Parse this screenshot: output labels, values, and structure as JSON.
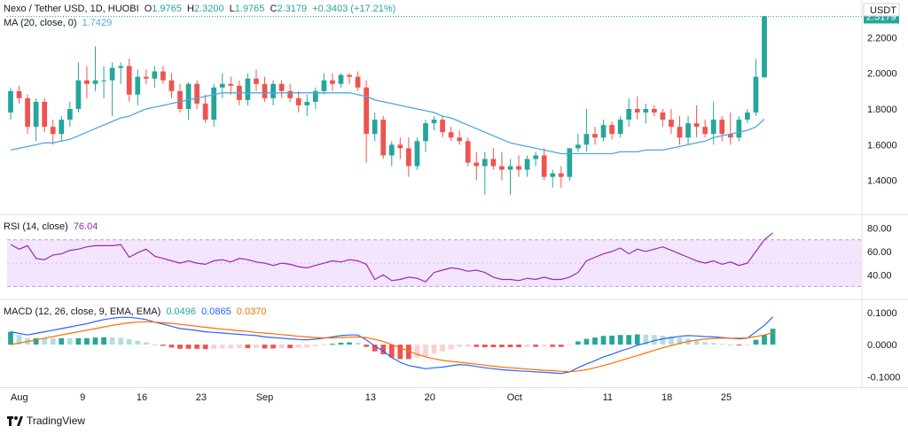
{
  "header": {
    "symbol": "Nexo / Tether USD, 1D, HUOBI",
    "open_label": "O",
    "open": "1.9765",
    "high_label": "H",
    "high": "2.3200",
    "low_label": "L",
    "low": "1.9765",
    "close_label": "C",
    "close": "2.3179",
    "change": "+0.3403 (+17.21%)",
    "currency": "USDT",
    "last_price": "2.3179"
  },
  "ma_legend": {
    "label": "MA (20, close, 0)",
    "value": "1.7429"
  },
  "rsi_legend": {
    "label": "RSI (14, close)",
    "value": "76.04"
  },
  "macd_legend": {
    "label": "MACD (12, 26, close, 9, EMA, EMA)",
    "v1": "0.0496",
    "v2": "0.0865",
    "v3": "0.0370"
  },
  "brand": "TradingView",
  "colors": {
    "up": "#26a69a",
    "down": "#ef5350",
    "ma": "#4ca8dc",
    "rsi": "#9c27b0",
    "macd": "#2962ff",
    "signal": "#ff6d00"
  },
  "chart_data": [
    {
      "type": "candlestick",
      "title": "Nexo / Tether USD, 1D, HUOBI",
      "ylim": [
        1.25,
        2.35
      ],
      "y_ticks": [
        "2.2000",
        "2.0000",
        "1.8000",
        "1.6000",
        "1.4000"
      ],
      "x_ticks": [
        "Aug",
        "9",
        "16",
        "23",
        "Sep",
        "13",
        "20",
        "Oct",
        "11",
        "18",
        "25"
      ],
      "ohlc": [
        [
          1.78,
          1.92,
          1.74,
          1.9
        ],
        [
          1.9,
          1.93,
          1.83,
          1.86
        ],
        [
          1.86,
          1.88,
          1.66,
          1.7
        ],
        [
          1.7,
          1.86,
          1.62,
          1.84
        ],
        [
          1.84,
          1.86,
          1.67,
          1.7
        ],
        [
          1.7,
          1.74,
          1.6,
          1.66
        ],
        [
          1.66,
          1.76,
          1.62,
          1.74
        ],
        [
          1.74,
          1.84,
          1.7,
          1.8
        ],
        [
          1.8,
          2.06,
          1.78,
          1.96
        ],
        [
          1.96,
          2.04,
          1.86,
          1.94
        ],
        [
          1.94,
          2.15,
          1.9,
          1.96
        ],
        [
          1.96,
          2.04,
          1.86,
          1.96
        ],
        [
          1.96,
          2.06,
          1.76,
          2.03
        ],
        [
          2.03,
          2.06,
          1.94,
          2.04
        ],
        [
          2.04,
          2.08,
          1.84,
          1.88
        ],
        [
          1.88,
          2.02,
          1.82,
          1.98
        ],
        [
          1.98,
          2.02,
          1.94,
          1.97
        ],
        [
          1.97,
          2.04,
          1.92,
          2.01
        ],
        [
          2.01,
          2.04,
          1.94,
          1.96
        ],
        [
          1.96,
          2.0,
          1.86,
          1.9
        ],
        [
          1.9,
          1.94,
          1.78,
          1.8
        ],
        [
          1.8,
          1.95,
          1.74,
          1.94
        ],
        [
          1.94,
          1.96,
          1.8,
          1.83
        ],
        [
          1.83,
          1.88,
          1.72,
          1.74
        ],
        [
          1.74,
          1.94,
          1.7,
          1.92
        ],
        [
          1.92,
          2.0,
          1.86,
          1.94
        ],
        [
          1.94,
          1.98,
          1.88,
          1.93
        ],
        [
          1.93,
          1.96,
          1.82,
          1.85
        ],
        [
          1.85,
          2.0,
          1.82,
          1.97
        ],
        [
          1.97,
          2.02,
          1.9,
          1.94
        ],
        [
          1.94,
          1.98,
          1.84,
          1.86
        ],
        [
          1.86,
          1.96,
          1.82,
          1.94
        ],
        [
          1.94,
          1.96,
          1.86,
          1.9
        ],
        [
          1.9,
          1.94,
          1.84,
          1.86
        ],
        [
          1.86,
          1.9,
          1.78,
          1.82
        ],
        [
          1.82,
          1.88,
          1.76,
          1.84
        ],
        [
          1.84,
          1.92,
          1.8,
          1.9
        ],
        [
          1.9,
          2.0,
          1.88,
          1.96
        ],
        [
          1.96,
          2.0,
          1.9,
          1.94
        ],
        [
          1.94,
          2.0,
          1.92,
          1.99
        ],
        [
          1.99,
          2.0,
          1.94,
          1.98
        ],
        [
          1.98,
          2.01,
          1.9,
          1.92
        ],
        [
          1.92,
          1.96,
          1.5,
          1.66
        ],
        [
          1.66,
          1.78,
          1.62,
          1.74
        ],
        [
          1.74,
          1.76,
          1.52,
          1.54
        ],
        [
          1.54,
          1.62,
          1.48,
          1.6
        ],
        [
          1.6,
          1.64,
          1.52,
          1.58
        ],
        [
          1.58,
          1.64,
          1.42,
          1.48
        ],
        [
          1.48,
          1.64,
          1.46,
          1.62
        ],
        [
          1.62,
          1.74,
          1.56,
          1.72
        ],
        [
          1.72,
          1.76,
          1.68,
          1.74
        ],
        [
          1.74,
          1.76,
          1.64,
          1.67
        ],
        [
          1.67,
          1.7,
          1.62,
          1.64
        ],
        [
          1.64,
          1.68,
          1.6,
          1.62
        ],
        [
          1.62,
          1.64,
          1.48,
          1.5
        ],
        [
          1.5,
          1.56,
          1.4,
          1.48
        ],
        [
          1.48,
          1.56,
          1.32,
          1.52
        ],
        [
          1.52,
          1.58,
          1.46,
          1.48
        ],
        [
          1.48,
          1.56,
          1.4,
          1.46
        ],
        [
          1.46,
          1.52,
          1.32,
          1.48
        ],
        [
          1.48,
          1.54,
          1.42,
          1.46
        ],
        [
          1.46,
          1.54,
          1.42,
          1.52
        ],
        [
          1.52,
          1.56,
          1.48,
          1.54
        ],
        [
          1.54,
          1.58,
          1.4,
          1.42
        ],
        [
          1.42,
          1.46,
          1.36,
          1.44
        ],
        [
          1.44,
          1.48,
          1.36,
          1.42
        ],
        [
          1.42,
          1.58,
          1.4,
          1.58
        ],
        [
          1.58,
          1.66,
          1.56,
          1.6
        ],
        [
          1.6,
          1.8,
          1.56,
          1.66
        ],
        [
          1.66,
          1.7,
          1.6,
          1.64
        ],
        [
          1.64,
          1.74,
          1.62,
          1.71
        ],
        [
          1.71,
          1.73,
          1.63,
          1.66
        ],
        [
          1.66,
          1.76,
          1.64,
          1.74
        ],
        [
          1.74,
          1.86,
          1.7,
          1.8
        ],
        [
          1.8,
          1.87,
          1.74,
          1.78
        ],
        [
          1.78,
          1.83,
          1.72,
          1.8
        ],
        [
          1.8,
          1.82,
          1.76,
          1.78
        ],
        [
          1.78,
          1.8,
          1.7,
          1.74
        ],
        [
          1.74,
          1.8,
          1.66,
          1.7
        ],
        [
          1.7,
          1.76,
          1.6,
          1.64
        ],
        [
          1.64,
          1.76,
          1.6,
          1.72
        ],
        [
          1.72,
          1.82,
          1.64,
          1.7
        ],
        [
          1.7,
          1.74,
          1.64,
          1.66
        ],
        [
          1.66,
          1.84,
          1.6,
          1.74
        ],
        [
          1.74,
          1.76,
          1.62,
          1.66
        ],
        [
          1.66,
          1.78,
          1.6,
          1.64
        ],
        [
          1.64,
          1.76,
          1.62,
          1.74
        ],
        [
          1.74,
          1.8,
          1.72,
          1.78
        ],
        [
          1.78,
          2.08,
          1.76,
          1.98
        ],
        [
          1.9765,
          2.32,
          1.9765,
          2.3179
        ]
      ],
      "ma": [
        1.57,
        1.58,
        1.59,
        1.6,
        1.61,
        1.61,
        1.62,
        1.63,
        1.65,
        1.67,
        1.69,
        1.71,
        1.73,
        1.75,
        1.76,
        1.78,
        1.8,
        1.81,
        1.82,
        1.83,
        1.84,
        1.85,
        1.86,
        1.87,
        1.88,
        1.89,
        1.89,
        1.89,
        1.89,
        1.89,
        1.89,
        1.89,
        1.89,
        1.89,
        1.89,
        1.89,
        1.89,
        1.89,
        1.89,
        1.89,
        1.89,
        1.88,
        1.87,
        1.85,
        1.84,
        1.83,
        1.82,
        1.81,
        1.8,
        1.79,
        1.78,
        1.76,
        1.75,
        1.73,
        1.71,
        1.69,
        1.67,
        1.65,
        1.63,
        1.61,
        1.6,
        1.59,
        1.58,
        1.57,
        1.56,
        1.55,
        1.55,
        1.55,
        1.55,
        1.55,
        1.55,
        1.55,
        1.56,
        1.56,
        1.56,
        1.57,
        1.57,
        1.57,
        1.58,
        1.59,
        1.6,
        1.61,
        1.62,
        1.64,
        1.65,
        1.66,
        1.67,
        1.68,
        1.7,
        1.7429
      ]
    },
    {
      "type": "line",
      "title": "RSI (14, close)",
      "ylim": [
        25,
        82
      ],
      "y_ticks": [
        "80.00",
        "60.00",
        "40.00"
      ],
      "band": [
        30,
        70
      ],
      "values": [
        66,
        62,
        65,
        54,
        53,
        57,
        58,
        61,
        62,
        64,
        65,
        65,
        65,
        66,
        55,
        59,
        62,
        56,
        54,
        52,
        50,
        52,
        50,
        49,
        52,
        53,
        51,
        54,
        53,
        51,
        50,
        48,
        50,
        49,
        47,
        46,
        48,
        50,
        52,
        51,
        53,
        52,
        49,
        36,
        40,
        35,
        36,
        38,
        37,
        34,
        42,
        44,
        46,
        45,
        43,
        44,
        42,
        38,
        36,
        36,
        35,
        37,
        36,
        38,
        36,
        36,
        38,
        42,
        52,
        55,
        58,
        60,
        63,
        58,
        62,
        60,
        62,
        64,
        61,
        58,
        55,
        52,
        50,
        52,
        49,
        51,
        48,
        50,
        60,
        70,
        76.04
      ]
    },
    {
      "type": "macd",
      "title": "MACD (12, 26, close, 9, EMA, EMA)",
      "ylim": [
        -0.11,
        0.105
      ],
      "y_ticks": [
        "0.1000",
        "0.0000",
        "-0.1000"
      ],
      "macd": [
        0.04,
        0.035,
        0.03,
        0.035,
        0.04,
        0.045,
        0.05,
        0.055,
        0.06,
        0.065,
        0.072,
        0.078,
        0.082,
        0.085,
        0.085,
        0.082,
        0.078,
        0.07,
        0.064,
        0.057,
        0.05,
        0.047,
        0.044,
        0.04,
        0.038,
        0.036,
        0.034,
        0.032,
        0.03,
        0.028,
        0.024,
        0.022,
        0.02,
        0.018,
        0.016,
        0.015,
        0.017,
        0.02,
        0.024,
        0.028,
        0.03,
        0.03,
        0.015,
        -0.005,
        -0.02,
        -0.04,
        -0.055,
        -0.065,
        -0.07,
        -0.075,
        -0.072,
        -0.07,
        -0.066,
        -0.062,
        -0.064,
        -0.068,
        -0.072,
        -0.075,
        -0.078,
        -0.08,
        -0.082,
        -0.083,
        -0.085,
        -0.086,
        -0.088,
        -0.09,
        -0.085,
        -0.072,
        -0.06,
        -0.05,
        -0.038,
        -0.03,
        -0.02,
        -0.012,
        -0.002,
        0.005,
        0.012,
        0.018,
        0.022,
        0.026,
        0.028,
        0.027,
        0.025,
        0.024,
        0.022,
        0.02,
        0.018,
        0.02,
        0.04,
        0.06,
        0.0865
      ],
      "signal": [
        0.0,
        0.005,
        0.01,
        0.015,
        0.02,
        0.025,
        0.03,
        0.035,
        0.04,
        0.045,
        0.05,
        0.055,
        0.06,
        0.064,
        0.068,
        0.07,
        0.071,
        0.07,
        0.068,
        0.066,
        0.063,
        0.06,
        0.057,
        0.054,
        0.051,
        0.048,
        0.046,
        0.043,
        0.041,
        0.038,
        0.036,
        0.034,
        0.031,
        0.029,
        0.026,
        0.024,
        0.022,
        0.021,
        0.021,
        0.022,
        0.023,
        0.024,
        0.022,
        0.016,
        0.01,
        0.0,
        -0.01,
        -0.02,
        -0.03,
        -0.038,
        -0.044,
        -0.049,
        -0.052,
        -0.055,
        -0.058,
        -0.061,
        -0.064,
        -0.067,
        -0.07,
        -0.072,
        -0.074,
        -0.076,
        -0.078,
        -0.08,
        -0.081,
        -0.083,
        -0.084,
        -0.082,
        -0.078,
        -0.072,
        -0.065,
        -0.058,
        -0.05,
        -0.042,
        -0.034,
        -0.026,
        -0.018,
        -0.01,
        -0.003,
        0.004,
        0.01,
        0.014,
        0.017,
        0.019,
        0.02,
        0.02,
        0.02,
        0.021,
        0.025,
        0.03,
        0.037
      ]
    }
  ]
}
